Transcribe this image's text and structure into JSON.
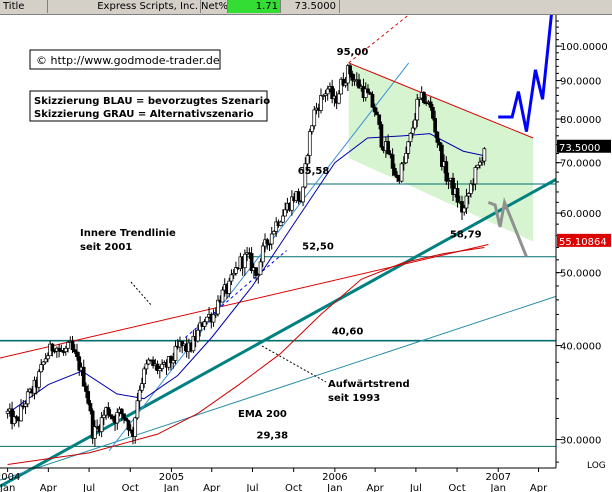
{
  "titlebar": {
    "label": "Title",
    "company": "Express Scripts, Inc.",
    "net_label": "Net%",
    "net_value": "1.71",
    "last_price": "73.5000"
  },
  "chart_data": {
    "type": "candlestick",
    "title": "Express Scripts, Inc.",
    "y_scale": "log",
    "ylim": [
      27.5,
      110
    ],
    "x_range": [
      "2003-12-15",
      "2007-05-10"
    ],
    "x_tick_labels": [
      {
        "date": "2004-01-01",
        "label": "2004",
        "sub": "Jan"
      },
      {
        "date": "2004-04-01",
        "label": "Apr"
      },
      {
        "date": "2004-07-01",
        "label": "Jul"
      },
      {
        "date": "2004-10-01",
        "label": "Oct"
      },
      {
        "date": "2005-01-01",
        "label": "2005",
        "sub": "Jan"
      },
      {
        "date": "2005-04-01",
        "label": "Apr"
      },
      {
        "date": "2005-07-01",
        "label": "Jul"
      },
      {
        "date": "2005-10-01",
        "label": "Oct"
      },
      {
        "date": "2006-01-01",
        "label": "2006",
        "sub": "Jan"
      },
      {
        "date": "2006-04-01",
        "label": "Apr"
      },
      {
        "date": "2006-07-01",
        "label": "Jul"
      },
      {
        "date": "2006-10-01",
        "label": "Oct"
      },
      {
        "date": "2007-01-01",
        "label": "2007",
        "sub": "Jan"
      },
      {
        "date": "2007-04-01",
        "label": "Apr"
      }
    ],
    "y_ticks": [
      {
        "value": 30,
        "label": "30.0000"
      },
      {
        "value": 40,
        "label": "40.0000"
      },
      {
        "value": 50,
        "label": "50.0000"
      },
      {
        "value": 60,
        "label": "60.0000"
      },
      {
        "value": 70,
        "label": "70.0000"
      },
      {
        "value": 80,
        "label": "80.0000"
      },
      {
        "value": 90,
        "label": "90.0000"
      },
      {
        "value": 100,
        "label": "100.0000"
      }
    ],
    "price_path": [
      [
        "2004-01-01",
        32.5
      ],
      [
        "2004-01-20",
        31.5
      ],
      [
        "2004-02-10",
        33.8
      ],
      [
        "2004-03-05",
        35.5
      ],
      [
        "2004-03-25",
        38.5
      ],
      [
        "2004-04-15",
        40.2
      ],
      [
        "2004-05-01",
        39.0
      ],
      [
        "2004-05-20",
        39.8
      ],
      [
        "2004-06-10",
        37.5
      ],
      [
        "2004-06-25",
        35.0
      ],
      [
        "2004-07-10",
        30.5
      ],
      [
        "2004-07-25",
        31.5
      ],
      [
        "2004-08-10",
        33.0
      ],
      [
        "2004-08-25",
        32.0
      ],
      [
        "2004-09-10",
        32.6
      ],
      [
        "2004-09-25",
        31.8
      ],
      [
        "2004-10-05",
        30.0
      ],
      [
        "2004-10-20",
        35.0
      ],
      [
        "2004-11-10",
        38.0
      ],
      [
        "2004-11-25",
        37.5
      ],
      [
        "2004-12-10",
        37.0
      ],
      [
        "2005-01-01",
        38.2
      ],
      [
        "2005-01-20",
        40.0
      ],
      [
        "2005-02-10",
        39.5
      ],
      [
        "2005-02-25",
        41.0
      ],
      [
        "2005-03-15",
        43.5
      ],
      [
        "2005-04-05",
        44.0
      ],
      [
        "2005-04-20",
        46.5
      ],
      [
        "2005-05-10",
        47.8
      ],
      [
        "2005-06-01",
        51.5
      ],
      [
        "2005-06-20",
        52.5
      ],
      [
        "2005-07-10",
        49.5
      ],
      [
        "2005-07-25",
        53.5
      ],
      [
        "2005-08-10",
        56.0
      ],
      [
        "2005-08-25",
        58.5
      ],
      [
        "2005-09-15",
        61.0
      ],
      [
        "2005-10-05",
        63.5
      ],
      [
        "2005-10-20",
        62.0
      ],
      [
        "2005-11-01",
        73.0
      ],
      [
        "2005-11-15",
        81.5
      ],
      [
        "2005-12-01",
        85.0
      ],
      [
        "2005-12-15",
        88.0
      ],
      [
        "2006-01-01",
        84.0
      ],
      [
        "2006-01-15",
        89.0
      ],
      [
        "2006-02-01",
        93.0
      ],
      [
        "2006-02-15",
        90.0
      ],
      [
        "2006-03-01",
        88.0
      ],
      [
        "2006-03-15",
        86.0
      ],
      [
        "2006-04-01",
        82.0
      ],
      [
        "2006-04-15",
        75.0
      ],
      [
        "2006-05-01",
        72.0
      ],
      [
        "2006-05-20",
        66.5
      ],
      [
        "2006-06-05",
        70.0
      ],
      [
        "2006-06-20",
        76.0
      ],
      [
        "2006-07-05",
        84.0
      ],
      [
        "2006-07-20",
        85.5
      ],
      [
        "2006-08-05",
        82.0
      ],
      [
        "2006-08-20",
        74.0
      ],
      [
        "2006-09-05",
        67.5
      ],
      [
        "2006-09-20",
        65.0
      ],
      [
        "2006-10-05",
        62.0
      ],
      [
        "2006-10-15",
        60.0
      ],
      [
        "2006-10-25",
        63.0
      ],
      [
        "2006-11-05",
        66.5
      ],
      [
        "2006-11-20",
        69.5
      ],
      [
        "2006-12-01",
        73.5
      ]
    ],
    "overlays": [
      {
        "name": "EMA 200",
        "color": "#cc0000",
        "points": [
          [
            "2004-01-01",
            27.8
          ],
          [
            "2004-07-01",
            28.8
          ],
          [
            "2004-12-01",
            30.5
          ],
          [
            "2005-03-01",
            32.5
          ],
          [
            "2005-06-01",
            35.5
          ],
          [
            "2005-09-01",
            39.0
          ],
          [
            "2005-12-01",
            44.0
          ],
          [
            "2006-03-01",
            49.0
          ],
          [
            "2006-06-01",
            51.5
          ],
          [
            "2006-09-01",
            53.0
          ],
          [
            "2006-12-01",
            54.0
          ]
        ]
      },
      {
        "name": "",
        "color": "#0000aa",
        "points": [
          [
            "2004-01-01",
            32.5
          ],
          [
            "2004-04-01",
            35.5
          ],
          [
            "2004-06-15",
            37.0
          ],
          [
            "2004-09-01",
            34.5
          ],
          [
            "2004-11-01",
            34.0
          ],
          [
            "2005-01-15",
            36.5
          ],
          [
            "2005-04-01",
            41.0
          ],
          [
            "2005-07-01",
            48.0
          ],
          [
            "2005-10-01",
            58.0
          ],
          [
            "2006-01-01",
            70.0
          ],
          [
            "2006-03-15",
            75.5
          ],
          [
            "2006-06-01",
            76.0
          ],
          [
            "2006-08-01",
            76.5
          ],
          [
            "2006-10-15",
            72.5
          ],
          [
            "2006-12-01",
            71.5
          ]
        ]
      }
    ],
    "trendlines": [
      {
        "name": "Aufwärtstrend seit 1993",
        "color": "#008080",
        "width": 3,
        "from": [
          "2003-12-15",
          26.0
        ],
        "to": [
          "2007-05-10",
          66.5
        ]
      },
      {
        "name": "Innere Trendlinie seit 2001",
        "color": "#dd0000",
        "width": 1,
        "from": [
          "2003-12-15",
          38.5
        ],
        "to": [
          "2006-12-10",
          54.5
        ]
      },
      {
        "name": "",
        "color": "#2a8fa8",
        "width": 1,
        "from": [
          "2003-12-15",
          26.5
        ],
        "to": [
          "2007-05-10",
          46.5
        ]
      },
      {
        "name": "",
        "color": "#3a8fd8",
        "width": 1,
        "from": [
          "2004-08-15",
          29.0
        ],
        "to": [
          "2006-06-15",
          95.0
        ]
      },
      {
        "name": "",
        "color": "#dd0000",
        "width": 1,
        "from": [
          "2006-02-01",
          95.0
        ],
        "to": [
          "2007-03-20",
          75.5
        ]
      },
      {
        "name": "",
        "color": "#dd0000",
        "width": 1,
        "dash": true,
        "from": [
          "2006-02-01",
          95.0
        ],
        "to": [
          "2007-01-20",
          140.0
        ]
      },
      {
        "name": "",
        "color": "#0000ff",
        "width": 1,
        "dash": true,
        "from": [
          "2005-02-01",
          41.0
        ],
        "to": [
          "2005-09-15",
          53.5
        ]
      }
    ],
    "horizontal_levels": [
      {
        "value": 95.0,
        "label": "95,00"
      },
      {
        "value": 65.58,
        "label": "65,58"
      },
      {
        "value": 52.5,
        "label": "52,50"
      },
      {
        "value": 40.6,
        "label": "40,60"
      },
      {
        "value": 29.38,
        "label": "29,38"
      }
    ],
    "point_labels": [
      {
        "date": "2006-09-15",
        "value": 58.79,
        "label": "58,79"
      }
    ],
    "channel_zone": {
      "color": "#c8f0c0",
      "points": [
        [
          "2006-02-01",
          95.0
        ],
        [
          "2007-03-20",
          75.5
        ],
        [
          "2007-03-20",
          55.0
        ],
        [
          "2006-02-01",
          71.0
        ]
      ]
    },
    "scenarios": [
      {
        "name": "Skizzierung BLAU = bevorzugtes Szenario",
        "color": "#0000ff",
        "points": [
          [
            "2007-01-01",
            80.5
          ],
          [
            "2007-02-01",
            80.5
          ],
          [
            "2007-02-15",
            87.0
          ],
          [
            "2007-03-05",
            77.0
          ],
          [
            "2007-03-25",
            93.0
          ],
          [
            "2007-04-10",
            85.0
          ],
          [
            "2007-05-05",
            118.0
          ]
        ]
      },
      {
        "name": "Skizzierung GRAU = Alternativszenario",
        "color": "#909090",
        "points": [
          [
            "2006-12-10",
            62.0
          ],
          [
            "2006-12-25",
            61.5
          ],
          [
            "2007-01-05",
            57.5
          ],
          [
            "2007-01-15",
            62.0
          ],
          [
            "2007-03-05",
            52.5
          ]
        ]
      }
    ],
    "price_tags": [
      {
        "value": 73.5,
        "label": "73.5000",
        "bg": "#000000",
        "fg": "#ffffff"
      },
      {
        "value": 55.10864,
        "label": "55.10864",
        "bg": "#dd0000",
        "fg": "#ffffff"
      }
    ],
    "annotations": {
      "copyright": "© http://www.godmode-trader.de",
      "legend_line1": "Skizzierung BLAU = bevorzugtes Szenario",
      "legend_line2": "Skizzierung GRAU = Alternativszenario",
      "inner_trend": "Innere Trendlinie\nseit 2001",
      "uptrend": "Aufwärtstrend\nseit 1993",
      "ema": "EMA 200"
    },
    "scale_label": "LOG",
    "grid": false
  }
}
